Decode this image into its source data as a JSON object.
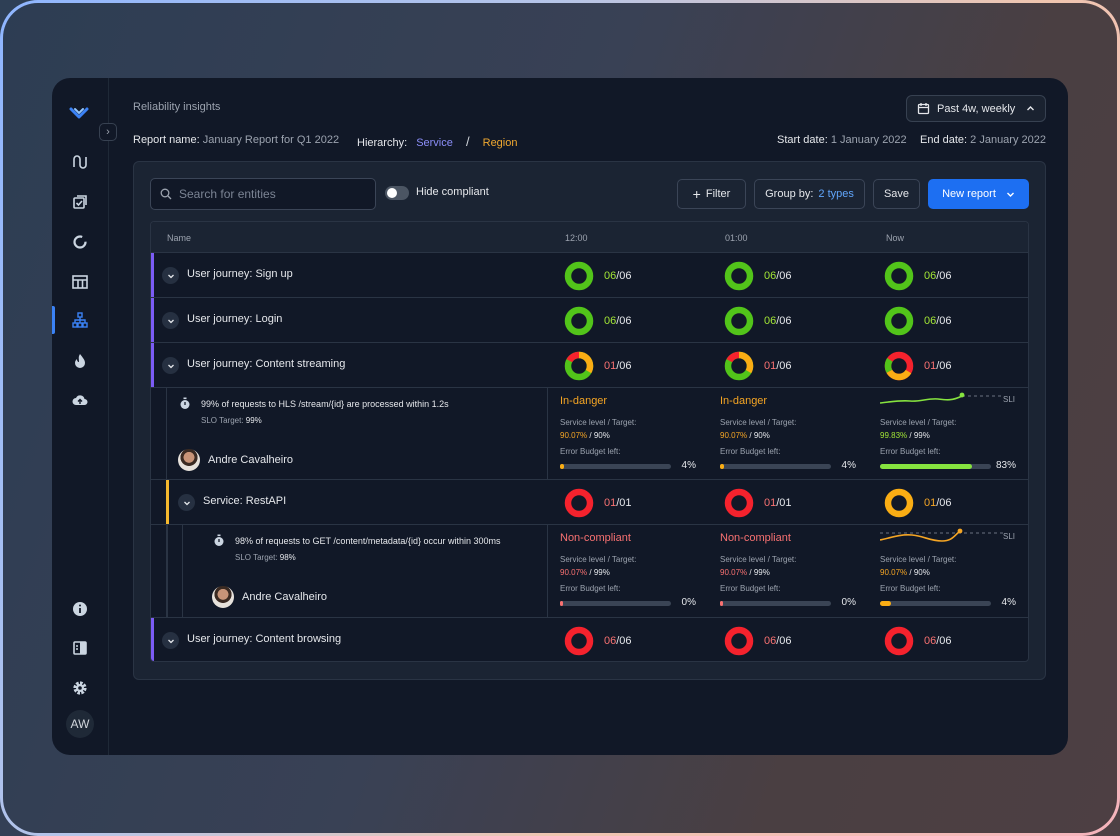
{
  "header": {
    "title": "Reliability insights",
    "date_range": "Past 4w, weekly",
    "report_name_label": "Report name:",
    "report_name": "January Report for Q1 2022",
    "hierarchy_label": "Hierarchy:",
    "hierarchy_service": "Service",
    "hierarchy_separator": "/",
    "hierarchy_region": "Region",
    "start_label": "Start date:",
    "start_date": "1 January 2022",
    "end_label": "End date:",
    "end_date": "2 January 2022"
  },
  "sidebar": {
    "icons": [
      "logo-icon",
      "flow-icon",
      "checklist-icon",
      "donut-icon",
      "table-icon",
      "hierarchy-icon",
      "fire-icon",
      "cloud-upload-icon",
      "info-icon",
      "panel-icon",
      "settings-icon"
    ],
    "avatar": "AW",
    "active_color": "#3b82f6"
  },
  "toolbar": {
    "search_placeholder": "Search for entities",
    "hide_compliant": "Hide compliant",
    "filter": "Filter",
    "group_by_label": "Group by:",
    "group_by_value": "2 types",
    "save": "Save",
    "new_report": "New report"
  },
  "table": {
    "columns": [
      "Name",
      "12:00",
      "01:00",
      "Now"
    ],
    "rows": [
      {
        "label": "User journey: Sign up",
        "cells": [
          [
            "06",
            "/06"
          ],
          [
            "06",
            "/06"
          ],
          [
            "06",
            "/06"
          ]
        ]
      },
      {
        "label": "User journey: Login",
        "cells": [
          [
            "06",
            "/06"
          ],
          [
            "06",
            "/06"
          ],
          [
            "06",
            "/06"
          ]
        ]
      },
      {
        "label": "User journey: Content streaming",
        "cells": [
          [
            "01",
            "/06"
          ],
          [
            "01",
            "/06"
          ],
          [
            "01",
            "/06"
          ]
        ]
      },
      {
        "label": "Service: RestAPI",
        "cells": [
          [
            "01",
            "/01"
          ],
          [
            "01",
            "/01"
          ],
          [
            "01",
            "/06"
          ]
        ]
      },
      {
        "label": "User journey: Content browsing",
        "cells": [
          [
            "06",
            "/06"
          ],
          [
            "06",
            "/06"
          ],
          [
            "06",
            "/06"
          ]
        ]
      }
    ],
    "details": [
      {
        "slo": "99% of requests to HLS /stream/{id} are processed within 1.2s",
        "target_label": "SLO Target:",
        "target": "99%",
        "owner": "Andre Cavalheiro",
        "cells": [
          {
            "status": "In-danger",
            "sl_label": "Service level / Target:",
            "level": "90.07%",
            "target": "90%",
            "eb_label": "Error Budget left:",
            "budget": "4%",
            "budget_fraction": 0.04
          },
          {
            "status": "In-danger",
            "sl_label": "Service level / Target:",
            "level": "90.07%",
            "target": "90%",
            "eb_label": "Error Budget left:",
            "budget": "4%",
            "budget_fraction": 0.04
          },
          {
            "status": "",
            "sl_label": "Service level / Target:",
            "level": "99.83%",
            "target": "99%",
            "eb_label": "Error Budget left:",
            "budget": "83%",
            "budget_fraction": 0.83,
            "sli": "SLI"
          }
        ]
      },
      {
        "slo": "98% of requests to GET /content/metadata/{id} occur within 300ms",
        "target_label": "SLO Target:",
        "target": "98%",
        "owner": "Andre Cavalheiro",
        "cells": [
          {
            "status": "Non-compliant",
            "sl_label": "Service level / Target:",
            "level": "90.07%",
            "target": "99%",
            "eb_label": "Error Budget left:",
            "budget": "0%",
            "budget_fraction": 0.0
          },
          {
            "status": "Non-compliant",
            "sl_label": "Service level / Target:",
            "level": "90.07%",
            "target": "99%",
            "eb_label": "Error Budget left:",
            "budget": "0%",
            "budget_fraction": 0.0
          },
          {
            "status": "",
            "sl_label": "Service level / Target:",
            "level": "90.07%",
            "target": "90%",
            "eb_label": "Error Budget left:",
            "budget": "4%",
            "budget_fraction": 0.04,
            "sli": "SLI"
          }
        ]
      }
    ]
  },
  "colors": {
    "green": "#52c41a",
    "red": "#f5222d",
    "orange": "#faad14",
    "purple_accent": "#7c5cf5",
    "yellow_accent": "#f5b82e",
    "pink_value": "#f87171",
    "orange_text": "#f5a524",
    "green_text": "#a3e635"
  }
}
